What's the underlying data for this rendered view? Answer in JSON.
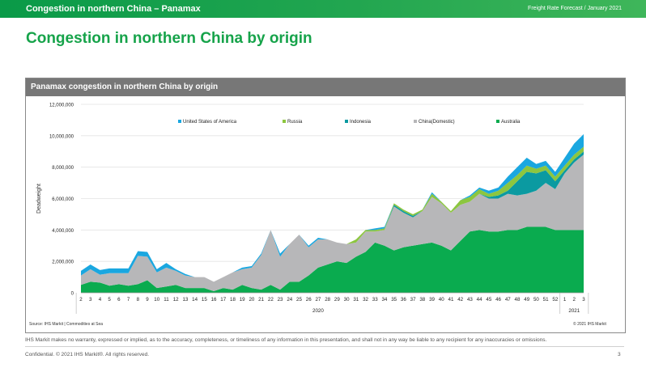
{
  "header": {
    "left": "Congestion in northern China – Panamax",
    "right": "Freight Rate Forecast / January 2021"
  },
  "title": "Congestion in northern China by origin",
  "panel_title": "Panamax congestion in northern China by origin",
  "source": "Source: IHS Markit | Commodities at Sea",
  "chart_copyright": "© 2021 IHS Markit",
  "disclaimer": "IHS Markit makes no warranty, expressed or implied, as to the accuracy, completeness, or timeliness of any information in this presentation, and shall not in any way be liable to any recipient for any inaccuracies or omissions.",
  "footer": "Confidential. © 2021 IHS Markit®. All rights reserved.",
  "page_number": "3",
  "chart_data": {
    "type": "area",
    "stacked": true,
    "ylabel": "Deadweight",
    "ylim": [
      0,
      12000000
    ],
    "ytick_labels": [
      "0",
      "2,000,000",
      "4,000,000",
      "6,000,000",
      "8,000,000",
      "10,000,000",
      "12,000,000"
    ],
    "yticks": [
      0,
      2000000,
      4000000,
      6000000,
      8000000,
      10000000,
      12000000
    ],
    "grid": true,
    "legend_position": "top",
    "categories": [
      "2",
      "3",
      "4",
      "5",
      "6",
      "7",
      "8",
      "9",
      "10",
      "11",
      "12",
      "13",
      "14",
      "15",
      "16",
      "17",
      "18",
      "19",
      "20",
      "21",
      "22",
      "23",
      "24",
      "25",
      "26",
      "27",
      "28",
      "29",
      "30",
      "31",
      "32",
      "33",
      "34",
      "35",
      "36",
      "37",
      "38",
      "39",
      "40",
      "41",
      "42",
      "43",
      "44",
      "45",
      "46",
      "47",
      "48",
      "49",
      "50",
      "51",
      "52",
      "1",
      "2",
      "3"
    ],
    "year_labels": [
      {
        "label": "2020",
        "start": 0,
        "end": 50
      },
      {
        "label": "2021",
        "start": 51,
        "end": 53
      }
    ],
    "series": [
      {
        "name": "Australia",
        "color": "#0aab4f",
        "values": [
          500000,
          700000,
          650000,
          450000,
          550000,
          450000,
          550000,
          800000,
          300000,
          400000,
          500000,
          300000,
          300000,
          300000,
          100000,
          300000,
          200000,
          500000,
          300000,
          200000,
          500000,
          200000,
          700000,
          700000,
          1100000,
          1600000,
          1800000,
          2000000,
          1900000,
          2300000,
          2600000,
          3200000,
          3000000,
          2700000,
          2900000,
          3000000,
          3100000,
          3200000,
          3000000,
          2700000,
          3300000,
          3900000,
          4000000,
          3900000,
          3900000,
          4000000,
          4000000,
          4200000,
          4200000,
          4200000,
          4000000,
          4000000,
          4000000,
          4000000
        ]
      },
      {
        "name": "China(Domestic)",
        "color": "#b7b7b9",
        "values": [
          600000,
          800000,
          500000,
          800000,
          700000,
          800000,
          1800000,
          1500000,
          1000000,
          1200000,
          900000,
          800000,
          700000,
          700000,
          600000,
          700000,
          1100000,
          1000000,
          1300000,
          2200000,
          3500000,
          2100000,
          2400000,
          3000000,
          1800000,
          1800000,
          1600000,
          1200000,
          1200000,
          900000,
          1300000,
          700000,
          1000000,
          2800000,
          2200000,
          1800000,
          2100000,
          2900000,
          2700000,
          2400000,
          2300000,
          1900000,
          2300000,
          2100000,
          2100000,
          2300000,
          2200000,
          2100000,
          2300000,
          2800000,
          2600000,
          3600000,
          4300000,
          4800000
        ]
      },
      {
        "name": "Indonesia",
        "color": "#0b9aa1",
        "values": [
          0,
          0,
          0,
          0,
          0,
          0,
          0,
          0,
          0,
          0,
          0,
          0,
          0,
          0,
          0,
          0,
          0,
          0,
          0,
          0,
          0,
          0,
          0,
          0,
          0,
          0,
          0,
          0,
          0,
          0,
          0,
          0,
          0,
          100000,
          100000,
          100000,
          0,
          0,
          0,
          0,
          0,
          0,
          0,
          100000,
          200000,
          200000,
          900000,
          1400000,
          1100000,
          800000,
          500000,
          200000,
          200000,
          200000
        ]
      },
      {
        "name": "Russia",
        "color": "#8cc63f",
        "values": [
          0,
          0,
          0,
          0,
          0,
          0,
          0,
          0,
          0,
          0,
          0,
          0,
          0,
          0,
          0,
          0,
          0,
          0,
          0,
          0,
          0,
          0,
          0,
          0,
          0,
          0,
          0,
          0,
          0,
          200000,
          100000,
          100000,
          100000,
          100000,
          100000,
          100000,
          100000,
          200000,
          100000,
          100000,
          300000,
          300000,
          300000,
          200000,
          300000,
          500000,
          400000,
          400000,
          300000,
          300000,
          300000,
          300000,
          300000,
          300000
        ]
      },
      {
        "name": "United States of America",
        "color": "#1aa7e0",
        "values": [
          300000,
          300000,
          300000,
          300000,
          300000,
          300000,
          300000,
          300000,
          200000,
          300000,
          100000,
          100000,
          0,
          0,
          0,
          0,
          0,
          100000,
          100000,
          100000,
          0,
          200000,
          0,
          0,
          100000,
          100000,
          0,
          0,
          0,
          0,
          0,
          100000,
          100000,
          0,
          0,
          0,
          0,
          100000,
          0,
          0,
          0,
          100000,
          100000,
          200000,
          200000,
          400000,
          500000,
          500000,
          300000,
          300000,
          300000,
          500000,
          700000,
          800000
        ]
      }
    ],
    "legend_order": [
      "United States of America",
      "Russia",
      "Indonesia",
      "China(Domestic)",
      "Australia"
    ]
  }
}
